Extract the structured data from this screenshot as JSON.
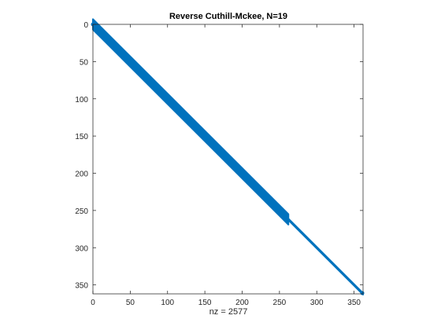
{
  "chart_data": {
    "type": "scatter",
    "plot_kind": "sparsity pattern (spy plot)",
    "title": "Reverse Cuthill-Mckee, N=19",
    "xlabel": "nz = 2577",
    "ylabel": "",
    "xlim": [
      0,
      362
    ],
    "ylim": [
      362,
      0
    ],
    "y_axis_direction": "reversed (0 at top)",
    "x_ticks": [
      0,
      50,
      100,
      150,
      200,
      250,
      300,
      350
    ],
    "y_ticks": [
      0,
      50,
      100,
      150,
      200,
      250,
      300,
      350
    ],
    "x_tick_labels": [
      "0",
      "50",
      "100",
      "150",
      "200",
      "250",
      "300",
      "350"
    ],
    "y_tick_labels": [
      "0",
      "50",
      "100",
      "150",
      "200",
      "250",
      "300",
      "350"
    ],
    "matrix_size": 362,
    "nonzeros": 2577,
    "grid": false,
    "marker_color": "#0072BD",
    "band_segments": [
      {
        "from_index": 0,
        "to_index": 262,
        "half_bandwidth": 7
      },
      {
        "from_index": 262,
        "to_index": 362,
        "half_bandwidth": 1
      }
    ]
  }
}
